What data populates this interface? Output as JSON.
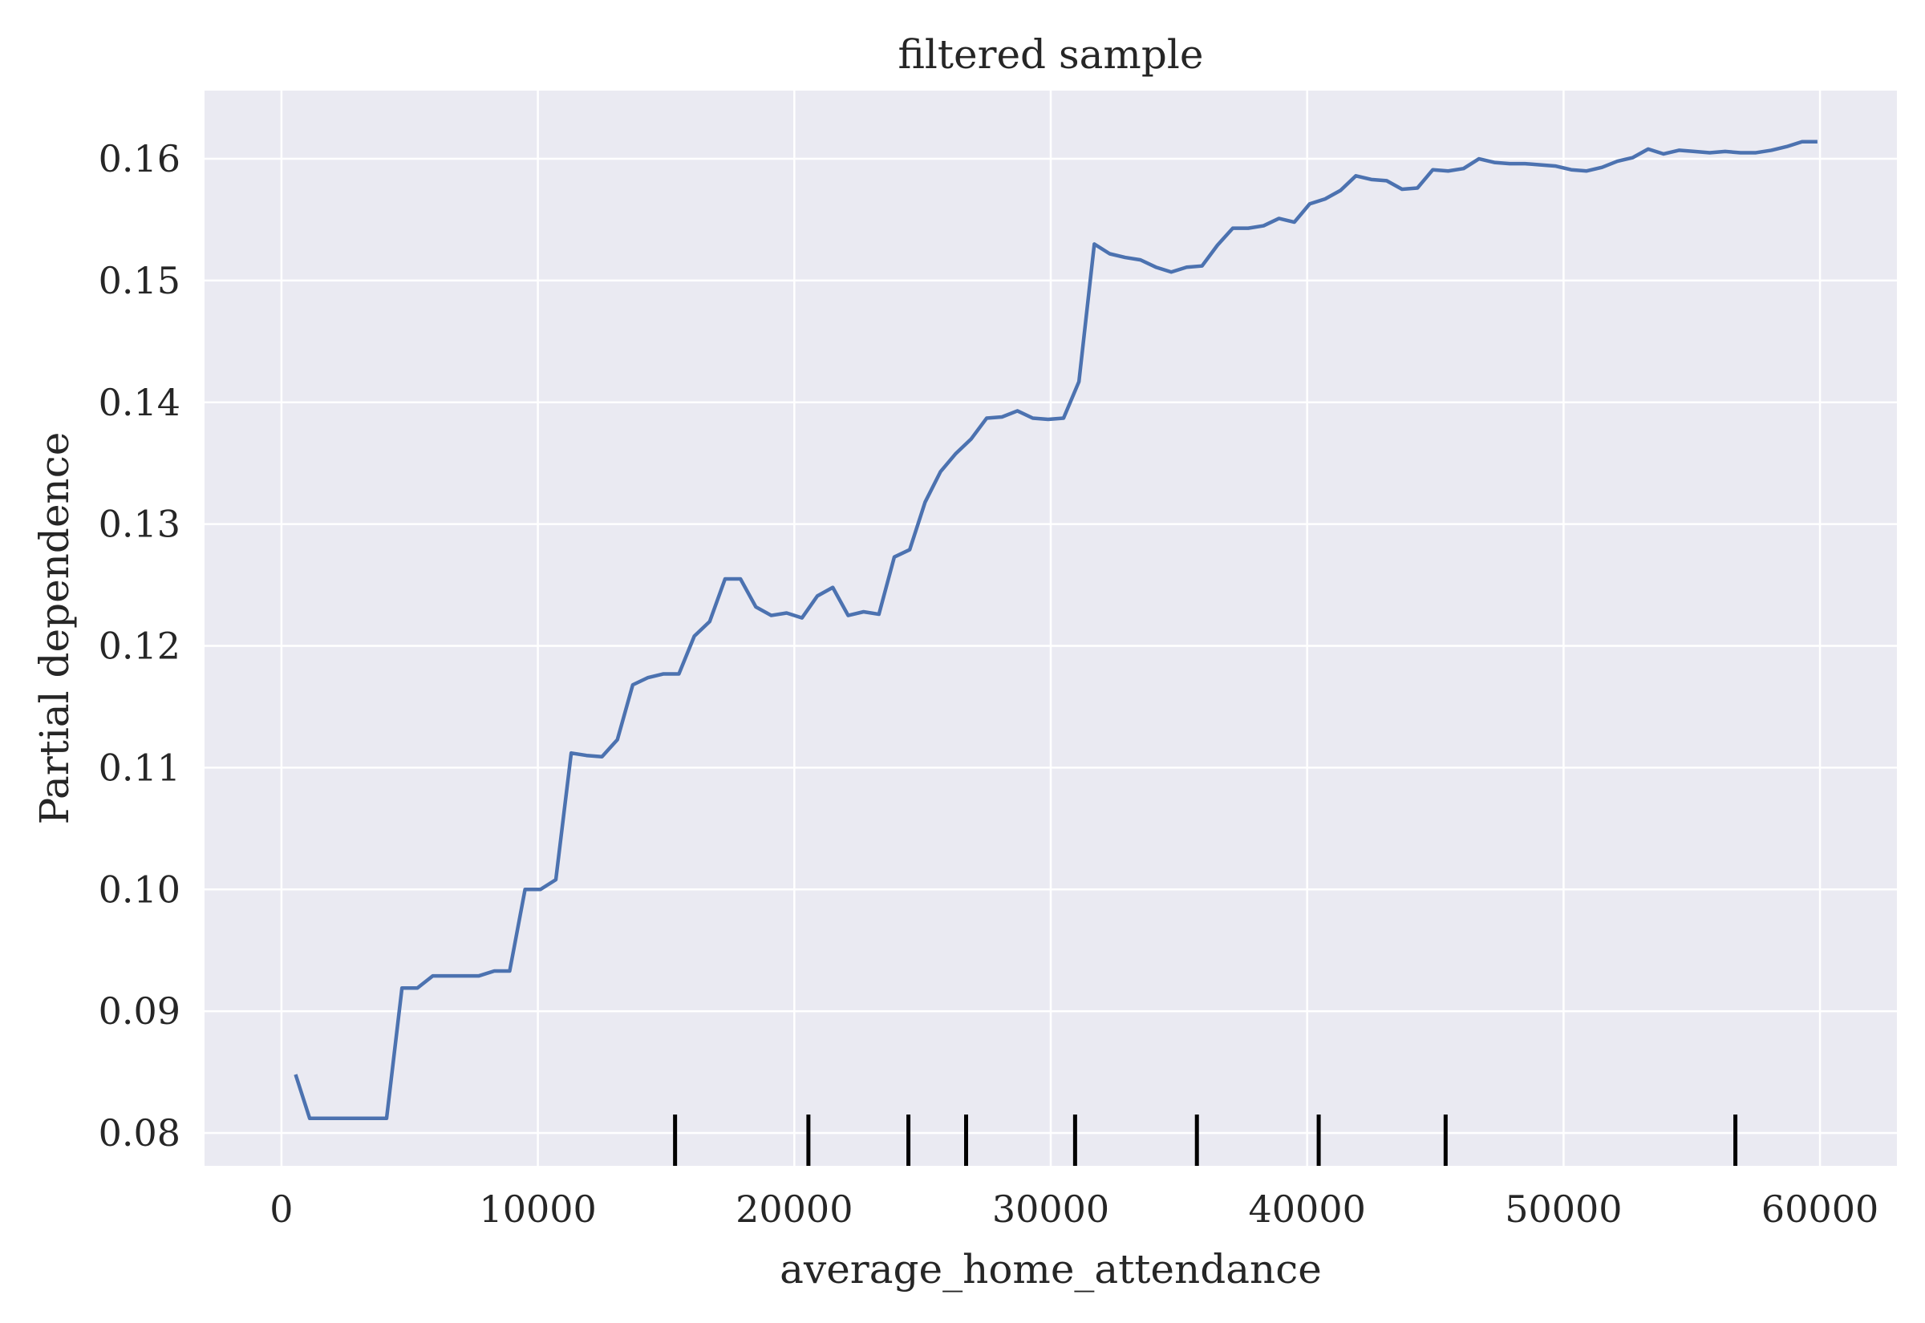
{
  "chart_data": {
    "type": "line",
    "title": "filtered sample",
    "xlabel": "average_home_attendance",
    "ylabel": "Partial dependence",
    "xlim": [
      -3000,
      63000
    ],
    "ylim": [
      0.0773,
      0.1656
    ],
    "grid": true,
    "legend": "none",
    "colors": {
      "background": "#eaeaf2",
      "grid": "#ffffff",
      "line": "#4c72b0",
      "rug": "#000000"
    },
    "x_ticks": [
      0,
      10000,
      20000,
      30000,
      40000,
      50000,
      60000
    ],
    "x_tick_labels": [
      "0",
      "10000",
      "20000",
      "30000",
      "40000",
      "50000",
      "60000"
    ],
    "y_ticks": [
      0.08,
      0.09,
      0.1,
      0.11,
      0.12,
      0.13,
      0.14,
      0.15,
      0.16
    ],
    "y_tick_labels": [
      "0.08",
      "0.09",
      "0.10",
      "0.11",
      "0.12",
      "0.13",
      "0.14",
      "0.15",
      "0.16"
    ],
    "series": [
      {
        "x": [
          550,
          1100,
          1700,
          2300,
          2900,
          3500,
          4100,
          4700,
          5300,
          5900,
          6500,
          7100,
          7700,
          8300,
          8900,
          9500,
          10100,
          10700,
          11300,
          11900,
          12500,
          13100,
          13700,
          14300,
          14900,
          15500,
          16100,
          16700,
          17300,
          17900,
          18500,
          19100,
          19700,
          20300,
          20900,
          21500,
          22100,
          22700,
          23300,
          23900,
          24500,
          25100,
          25700,
          26300,
          26900,
          27500,
          28100,
          28700,
          29300,
          29900,
          30500,
          31100,
          31700,
          32300,
          32900,
          33500,
          34100,
          34700,
          35300,
          35900,
          36500,
          37100,
          37700,
          38300,
          38900,
          39500,
          40100,
          40700,
          41300,
          41900,
          42500,
          43100,
          43700,
          44300,
          44900,
          45500,
          46100,
          46700,
          47300,
          47900,
          48500,
          49100,
          49700,
          50300,
          50900,
          51500,
          52100,
          52700,
          53300,
          53900,
          54500,
          55100,
          55700,
          56300,
          56900,
          57500,
          58100,
          58700,
          59300,
          59900
        ],
        "y": [
          0.0848,
          0.0812,
          0.0812,
          0.0812,
          0.0812,
          0.0812,
          0.0812,
          0.0919,
          0.0919,
          0.0929,
          0.0929,
          0.0929,
          0.0929,
          0.0933,
          0.0933,
          0.1,
          0.1,
          0.1008,
          0.1112,
          0.111,
          0.1109,
          0.1123,
          0.1168,
          0.1174,
          0.1177,
          0.1177,
          0.1208,
          0.122,
          0.1255,
          0.1255,
          0.1232,
          0.1225,
          0.1227,
          0.1223,
          0.1241,
          0.1248,
          0.1225,
          0.1228,
          0.1226,
          0.1273,
          0.1279,
          0.1318,
          0.1343,
          0.1358,
          0.137,
          0.1387,
          0.1388,
          0.1393,
          0.1387,
          0.1386,
          0.1387,
          0.1417,
          0.153,
          0.1522,
          0.1519,
          0.1517,
          0.1511,
          0.1507,
          0.1511,
          0.1512,
          0.1529,
          0.1543,
          0.1543,
          0.1545,
          0.1551,
          0.1548,
          0.1563,
          0.1567,
          0.1574,
          0.1586,
          0.1583,
          0.1582,
          0.1575,
          0.1576,
          0.1591,
          0.159,
          0.1592,
          0.16,
          0.1597,
          0.1596,
          0.1596,
          0.1595,
          0.1594,
          0.1591,
          0.159,
          0.1593,
          0.1598,
          0.1601,
          0.1608,
          0.1604,
          0.1607,
          0.1606,
          0.1605,
          0.1606,
          0.1605,
          0.1605,
          0.1607,
          0.161,
          0.1614,
          0.1614
        ]
      }
    ],
    "rug_x": [
      15350,
      20550,
      24450,
      26700,
      30950,
      35700,
      40450,
      45400,
      56700
    ]
  }
}
